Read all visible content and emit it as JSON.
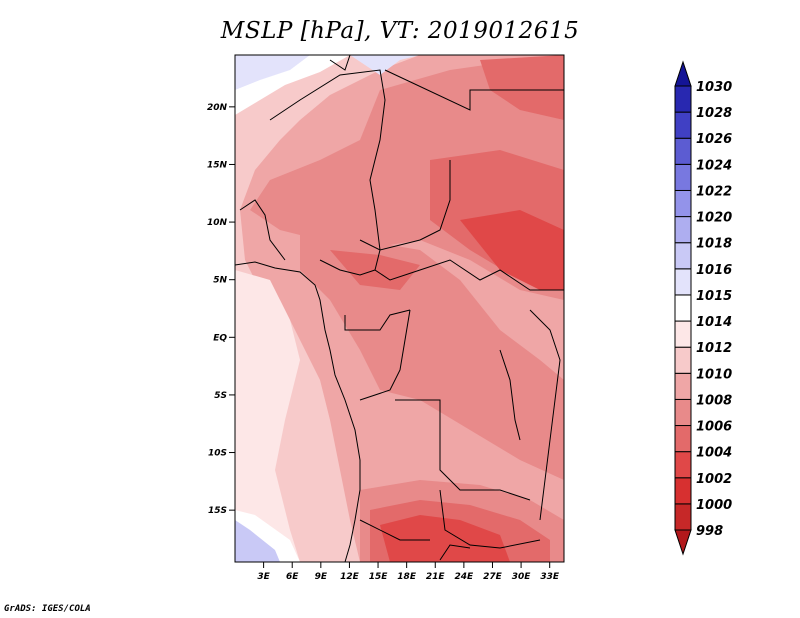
{
  "title": "MSLP [hPa], VT: 2019012615",
  "footer": "GrADS: IGES/COLA",
  "variable": "MSLP",
  "units": "hPa",
  "valid_time": "2019012615",
  "map": {
    "lat_ticks": [
      "20N",
      "15N",
      "10N",
      "5N",
      "EQ",
      "5S",
      "10S",
      "15S"
    ],
    "lon_ticks": [
      "3E",
      "6E",
      "9E",
      "12E",
      "15E",
      "18E",
      "21E",
      "24E",
      "27E",
      "30E",
      "33E"
    ],
    "lat_range": [
      -19.5,
      24.5
    ],
    "lon_range": [
      0,
      34.5
    ]
  },
  "colorbar": {
    "levels": [
      "998",
      "1000",
      "1002",
      "1004",
      "1006",
      "1008",
      "1010",
      "1012",
      "1014",
      "1015",
      "1016",
      "1018",
      "1020",
      "1022",
      "1024",
      "1026",
      "1028",
      "1030"
    ],
    "colors": [
      "#b2181b",
      "#c62828",
      "#d73030",
      "#e04848",
      "#e36a6a",
      "#e88a8a",
      "#efa6a6",
      "#f7caca",
      "#fde7e7",
      "#ffffff",
      "#e3e3fb",
      "#c9c9f6",
      "#aeaef0",
      "#9393ea",
      "#7878e0",
      "#5c5cd2",
      "#4040c4",
      "#2828b0",
      "#141496"
    ]
  }
}
